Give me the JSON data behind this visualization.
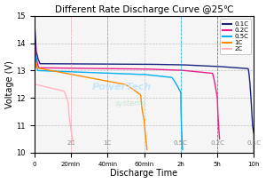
{
  "title": "Different Rate Discharge Curve @25℃",
  "xlabel": "Discharge Time",
  "ylabel": "Voltage (V)",
  "ylim": [
    10.0,
    15.0
  ],
  "yticks": [
    10.0,
    11.0,
    12.0,
    13.0,
    14.0,
    15.0
  ],
  "bg_color": "#ffffff",
  "plot_bg": "#f5f5f5",
  "curves": [
    {
      "label": "0.1C",
      "color": "#1a237e",
      "end_pos": 0.857
    },
    {
      "label": "0.2C",
      "color": "#e91e8c",
      "end_pos": 0.714
    },
    {
      "label": "0.5C",
      "color": "#00b0f0",
      "end_pos": 0.571
    },
    {
      "label": "1C",
      "color": "#ff8c00",
      "end_pos": 0.429
    },
    {
      "label": "2C",
      "color": "#ffb6c1",
      "end_pos": 0.286
    }
  ],
  "xtick_hours": [
    0,
    0.3333,
    0.6667,
    1.0,
    2.0,
    5.0,
    10.0
  ],
  "xtick_labels": [
    "0",
    "20min",
    "40min",
    "60min",
    "2h",
    "5h",
    "10h"
  ],
  "label_annotations": [
    {
      "text": "2C",
      "x_h": 0.3333,
      "y": 10.25
    },
    {
      "text": "1C",
      "x_h": 0.6667,
      "y": 10.25
    },
    {
      "text": "0.5C",
      "x_h": 2.0,
      "y": 10.25
    },
    {
      "text": "0.2C",
      "x_h": 5.0,
      "y": 10.25
    },
    {
      "text": "0.1C",
      "x_h": 10.0,
      "y": 10.25
    }
  ],
  "wm1_text": "PowerTech",
  "wm2_text": "systems",
  "wm1_color": "#c8e6fa",
  "wm2_color": "#c8e6c9"
}
